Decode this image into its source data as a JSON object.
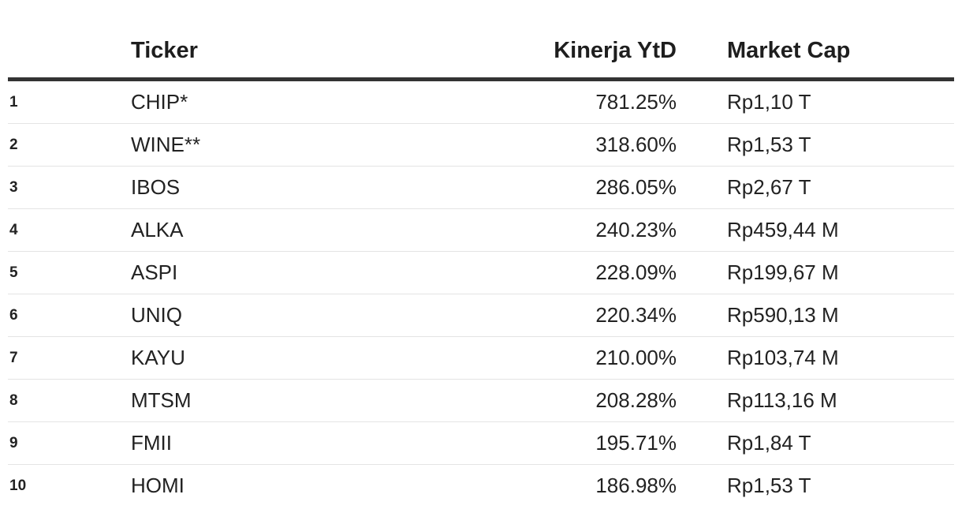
{
  "chart_data": {
    "type": "table",
    "columns": {
      "rank": "",
      "ticker": "Ticker",
      "performance": "Kinerja YtD",
      "market_cap": "Market Cap"
    },
    "rows": [
      {
        "rank": "1",
        "ticker": "CHIP*",
        "performance": "781.25%",
        "market_cap": "Rp1,10 T"
      },
      {
        "rank": "2",
        "ticker": "WINE**",
        "performance": "318.60%",
        "market_cap": "Rp1,53 T"
      },
      {
        "rank": "3",
        "ticker": "IBOS",
        "performance": "286.05%",
        "market_cap": "Rp2,67 T"
      },
      {
        "rank": "4",
        "ticker": "ALKA",
        "performance": "240.23%",
        "market_cap": "Rp459,44 M"
      },
      {
        "rank": "5",
        "ticker": "ASPI",
        "performance": "228.09%",
        "market_cap": "Rp199,67 M"
      },
      {
        "rank": "6",
        "ticker": "UNIQ",
        "performance": "220.34%",
        "market_cap": "Rp590,13 M"
      },
      {
        "rank": "7",
        "ticker": "KAYU",
        "performance": "210.00%",
        "market_cap": "Rp103,74 M"
      },
      {
        "rank": "8",
        "ticker": "MTSM",
        "performance": "208.28%",
        "market_cap": "Rp113,16 M"
      },
      {
        "rank": "9",
        "ticker": "FMII",
        "performance": "195.71%",
        "market_cap": "Rp1,84 T"
      },
      {
        "rank": "10",
        "ticker": "HOMI",
        "performance": "186.98%",
        "market_cap": "Rp1,53 T"
      }
    ]
  },
  "colors": {
    "text": "#222222",
    "header_rule": "#333333",
    "row_rule": "#e4e4e4",
    "background": "#ffffff"
  }
}
